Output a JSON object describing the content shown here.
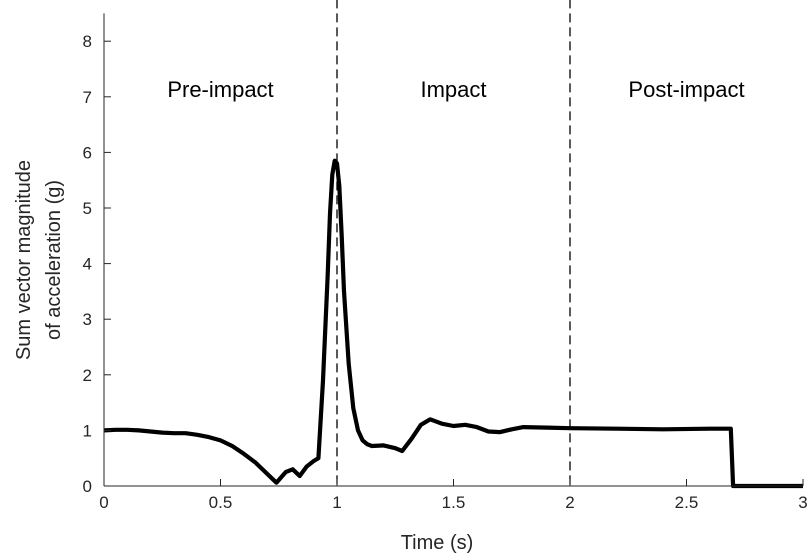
{
  "chart_data": {
    "type": "line",
    "xlabel": "Time (s)",
    "ylabel_lines": [
      "Sum vector magnitude",
      "of acceleration (g)"
    ],
    "xlim": [
      0,
      3
    ],
    "ylim": [
      0,
      8.5
    ],
    "x_ticks": [
      "0",
      "0.5",
      "1",
      "1.5",
      "2",
      "2.5",
      "3"
    ],
    "x_tick_values": [
      0,
      0.5,
      1,
      1.5,
      2,
      2.5,
      3
    ],
    "y_ticks": [
      "0",
      "1",
      "2",
      "3",
      "4",
      "5",
      "6",
      "7",
      "8"
    ],
    "y_tick_values": [
      0,
      1,
      2,
      3,
      4,
      5,
      6,
      7,
      8
    ],
    "grid": false,
    "phase_boundaries": [
      1,
      2
    ],
    "phases": [
      {
        "label": "Pre-impact",
        "x": 0.5
      },
      {
        "label": "Impact",
        "x": 1.5
      },
      {
        "label": "Post-impact",
        "x": 2.5
      }
    ],
    "line_color": "#000000",
    "series": [
      {
        "x": [
          0,
          0.05,
          0.1,
          0.15,
          0.2,
          0.25,
          0.3,
          0.35,
          0.4,
          0.45,
          0.5,
          0.55,
          0.6,
          0.65,
          0.7,
          0.74,
          0.78,
          0.81,
          0.84,
          0.87,
          0.9,
          0.92,
          0.94,
          0.96,
          0.97,
          0.98,
          0.99,
          1.0,
          1.01,
          1.02,
          1.03,
          1.05,
          1.07,
          1.09,
          1.11,
          1.13,
          1.15,
          1.2,
          1.25,
          1.28,
          1.32,
          1.36,
          1.4,
          1.45,
          1.5,
          1.55,
          1.6,
          1.65,
          1.7,
          1.75,
          1.8,
          1.9,
          2.0,
          2.2,
          2.4,
          2.6,
          2.69,
          2.7,
          3.0
        ],
        "y": [
          1.0,
          1.01,
          1.01,
          1.0,
          0.98,
          0.96,
          0.95,
          0.95,
          0.92,
          0.88,
          0.82,
          0.72,
          0.58,
          0.42,
          0.22,
          0.06,
          0.25,
          0.3,
          0.18,
          0.35,
          0.45,
          0.5,
          1.9,
          3.8,
          4.9,
          5.6,
          5.85,
          5.8,
          5.4,
          4.5,
          3.5,
          2.2,
          1.4,
          1.0,
          0.82,
          0.75,
          0.72,
          0.73,
          0.68,
          0.63,
          0.85,
          1.1,
          1.2,
          1.12,
          1.08,
          1.1,
          1.06,
          0.98,
          0.97,
          1.02,
          1.06,
          1.05,
          1.04,
          1.03,
          1.02,
          1.03,
          1.03,
          0.0,
          0.0
        ]
      }
    ]
  }
}
